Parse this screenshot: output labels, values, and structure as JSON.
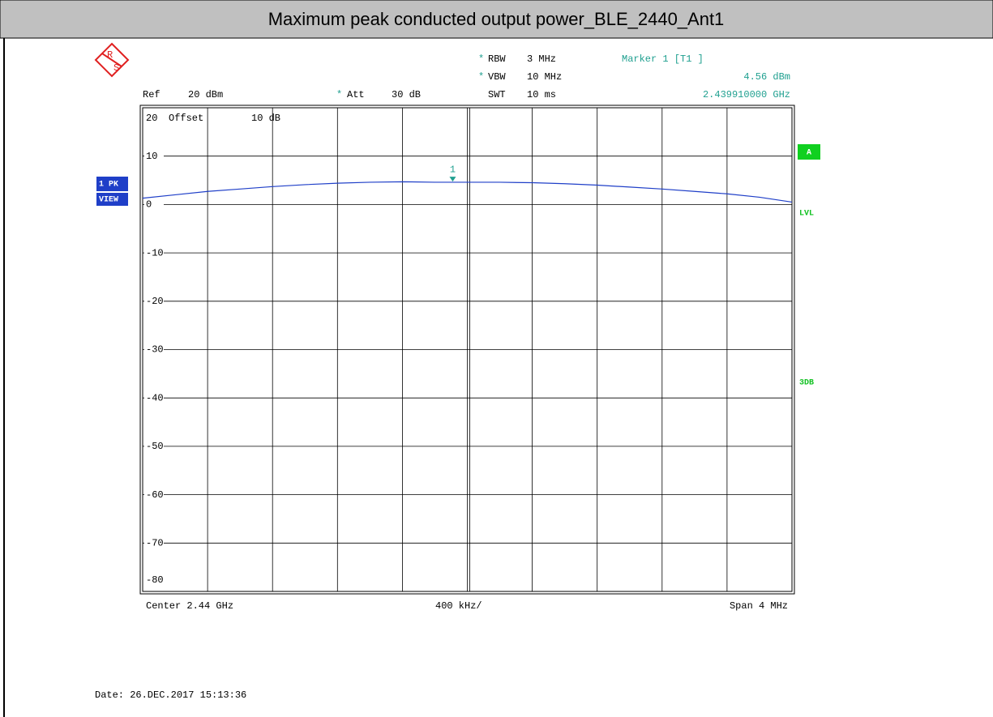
{
  "chart_data": {
    "type": "line",
    "title": "Maximum peak conducted output power_BLE_2440_Ant1",
    "logo": [
      "R",
      "S"
    ],
    "star": "*",
    "settings": {
      "rbw_label": "RBW",
      "rbw": "3 MHz",
      "vbw_label": "VBW",
      "vbw": "10 MHz",
      "swt_label": "SWT",
      "swt": "10 ms",
      "ref_label": "Ref",
      "ref": "20 dBm",
      "att_label": "Att",
      "att": "30 dB",
      "offset_label": "Offset",
      "offset": "10 dB"
    },
    "marker_readout": {
      "title": "Marker 1 [T1 ]",
      "level": "4.56 dBm",
      "frequency": "2.439910000 GHz"
    },
    "trace_labels": {
      "mode": "1 PK",
      "view": "VIEW"
    },
    "side_labels": {
      "trace": "A",
      "lvl": "LVL",
      "db3": "3DB"
    },
    "x_labels": {
      "center": "Center 2.44 GHz",
      "per_div": "400 kHz/",
      "span": "Span 4 MHz"
    },
    "date": "Date: 26.DEC.2017 15:13:36",
    "xlim": [
      2.438,
      2.442
    ],
    "ylim": [
      -80,
      20
    ],
    "yticks": [
      20,
      10,
      0,
      -10,
      -20,
      -30,
      -40,
      -50,
      -60,
      -70,
      -80
    ],
    "grid": true,
    "x": [
      2.438,
      2.4382,
      2.4384,
      2.4386,
      2.4388,
      2.439,
      2.4392,
      2.4394,
      2.4396,
      2.4398,
      2.44,
      2.4402,
      2.4404,
      2.4406,
      2.4408,
      2.441,
      2.4412,
      2.4414,
      2.4416,
      2.4418,
      2.442
    ],
    "series": [
      {
        "name": "1 PK",
        "color": "#1f3fc8",
        "values": [
          1.3,
          2.0,
          2.7,
          3.2,
          3.7,
          4.1,
          4.4,
          4.6,
          4.7,
          4.6,
          4.6,
          4.6,
          4.5,
          4.3,
          4.0,
          3.6,
          3.2,
          2.7,
          2.2,
          1.5,
          0.5
        ]
      }
    ],
    "marker": {
      "label": "1",
      "x": 2.43991,
      "value": 4.56,
      "color": "#20a090"
    }
  }
}
